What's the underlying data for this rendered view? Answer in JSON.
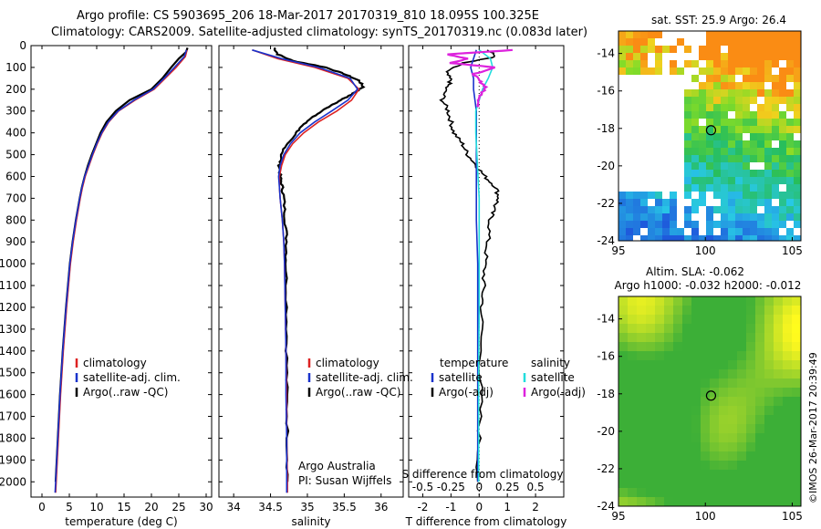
{
  "header": {
    "line1": "Argo profile: CS 5903695_206 18-Mar-2017 20170319_810 18.095S 100.325E",
    "line2": "Climatology: CARS2009. Satellite-adjusted climatology: synTS_20170319.nc (0.083d later)"
  },
  "colors": {
    "clim": "#dd2222",
    "sat": "#1a33cc",
    "argo": "#000000",
    "sal_sat": "#22dddd",
    "sal_argo": "#dd22dd"
  },
  "depth_axis": {
    "ticks": [
      "0",
      "100",
      "200",
      "300",
      "400",
      "500",
      "600",
      "700",
      "800",
      "900",
      "1000",
      "1100",
      "1200",
      "1300",
      "1400",
      "1500",
      "1600",
      "1700",
      "1800",
      "1900",
      "2000"
    ]
  },
  "chart_data": [
    {
      "type": "line",
      "title": "temperature profile",
      "xlabel": "temperature (deg C)",
      "xlim": [
        -2,
        31
      ],
      "ylim": [
        2070,
        0
      ],
      "xticks": [
        "0",
        "5",
        "10",
        "15",
        "20",
        "25",
        "30"
      ],
      "legend": [
        "climatology",
        "satellite-adj. clim.",
        "Argo(..raw -QC)"
      ],
      "series": [
        {
          "name": "climatology",
          "depth": [
            20,
            50,
            100,
            150,
            200,
            250,
            300,
            350,
            400,
            450,
            500,
            550,
            600,
            650,
            700,
            800,
            900,
            1000,
            1200,
            1400,
            1600,
            1800,
            2000,
            2050
          ],
          "values": [
            26.5,
            26.2,
            24.5,
            22.5,
            20.5,
            17.0,
            14.0,
            12.2,
            11.0,
            10.1,
            9.3,
            8.6,
            7.9,
            7.4,
            7.0,
            6.3,
            5.7,
            5.2,
            4.5,
            3.9,
            3.4,
            3.0,
            2.6,
            2.5
          ]
        },
        {
          "name": "satellite-adj. clim.",
          "depth": [
            20,
            50,
            100,
            150,
            200,
            250,
            300,
            350,
            400,
            450,
            500,
            550,
            600,
            650,
            700,
            800,
            900,
            1000,
            1200,
            1400,
            1600,
            1800,
            2000,
            2050
          ],
          "values": [
            26.4,
            26.0,
            24.2,
            22.3,
            20.3,
            16.8,
            13.9,
            12.1,
            10.9,
            10.0,
            9.2,
            8.5,
            7.8,
            7.3,
            6.9,
            6.2,
            5.6,
            5.1,
            4.4,
            3.8,
            3.3,
            2.9,
            2.5,
            2.4
          ]
        },
        {
          "name": "Argo(..raw -QC)",
          "depth": [
            10,
            30,
            60,
            100,
            150,
            200,
            250,
            300,
            350,
            400,
            450,
            500,
            550,
            600,
            650,
            700,
            800,
            900,
            1000,
            1200,
            1400,
            1600,
            1800,
            2000
          ],
          "values": [
            26.6,
            26.3,
            25.0,
            23.6,
            22.0,
            20.0,
            16.0,
            13.5,
            11.8,
            10.7,
            9.9,
            9.1,
            8.4,
            7.8,
            7.3,
            6.9,
            6.2,
            5.6,
            5.1,
            4.4,
            3.8,
            3.3,
            2.9,
            2.5
          ]
        }
      ]
    },
    {
      "type": "line",
      "title": "salinity profile",
      "xlabel": "salinity",
      "xlim": [
        33.8,
        36.3
      ],
      "ylim": [
        2070,
        0
      ],
      "xticks": [
        "34",
        "34.5",
        "35",
        "35.5",
        "36"
      ],
      "legend": [
        "climatology",
        "satellite-adj. clim.",
        "Argo(..raw -QC)"
      ],
      "annotation": [
        "Argo Australia",
        "PI: Susan Wijffels"
      ],
      "series": [
        {
          "name": "climatology",
          "depth": [
            20,
            60,
            100,
            150,
            200,
            250,
            300,
            350,
            400,
            450,
            500,
            550,
            600,
            650,
            700,
            800,
            900,
            1000,
            1200,
            1400,
            1600,
            1800,
            2000,
            2050
          ],
          "values": [
            34.25,
            34.6,
            35.1,
            35.55,
            35.7,
            35.6,
            35.4,
            35.15,
            34.95,
            34.8,
            34.7,
            34.65,
            34.62,
            34.62,
            34.63,
            34.66,
            34.68,
            34.69,
            34.7,
            34.71,
            34.72,
            34.72,
            34.73,
            34.73
          ]
        },
        {
          "name": "satellite-adj. clim.",
          "depth": [
            20,
            60,
            100,
            150,
            200,
            250,
            300,
            350,
            400,
            450,
            500,
            550,
            600,
            650,
            700,
            800,
            900,
            1000,
            1200,
            1400,
            1600,
            1800,
            2000,
            2050
          ],
          "values": [
            34.25,
            34.65,
            35.15,
            35.58,
            35.68,
            35.55,
            35.33,
            35.1,
            34.9,
            34.77,
            34.68,
            34.63,
            34.61,
            34.62,
            34.63,
            34.66,
            34.68,
            34.69,
            34.7,
            34.71,
            34.71,
            34.72,
            34.72,
            34.72
          ]
        },
        {
          "name": "Argo(..raw -QC)",
          "depth": [
            10,
            40,
            70,
            100,
            130,
            160,
            190,
            220,
            250,
            280,
            320,
            360,
            400,
            450,
            500,
            550,
            600,
            650,
            700,
            800,
            900,
            1000,
            1200,
            1400,
            1600,
            1800,
            2000
          ],
          "values": [
            34.55,
            34.6,
            34.8,
            35.25,
            35.5,
            35.7,
            35.76,
            35.62,
            35.45,
            35.3,
            35.1,
            34.95,
            34.85,
            34.72,
            34.65,
            34.62,
            34.63,
            34.66,
            34.68,
            34.7,
            34.72,
            34.71,
            34.72,
            34.72,
            34.72,
            34.73,
            34.73
          ]
        }
      ]
    },
    {
      "type": "line",
      "title": "difference from climatology",
      "xlabel": "T difference from climatology",
      "x2label": "S difference from climatology",
      "xlim": [
        -2.5,
        3
      ],
      "ylim": [
        2070,
        0
      ],
      "xticks": [
        "-2",
        "-1",
        "0",
        "1",
        "2"
      ],
      "x2ticks": [
        "-0.5",
        "-0.25",
        "0",
        "0.25",
        "0.5"
      ],
      "legend_left_title": "temperature",
      "legend_right_title": "salinity",
      "legend_left": [
        "satellite",
        "Argo(-adj)"
      ],
      "legend_right": [
        "satellite",
        "Argo(-adj)"
      ],
      "series": [
        {
          "name": "temperature satellite",
          "depth": [
            20,
            60,
            100,
            150,
            200,
            300,
            400,
            500,
            600,
            700,
            800,
            1000,
            1200,
            1500,
            2000
          ],
          "values": [
            -0.1,
            -0.2,
            -0.3,
            -0.2,
            -0.2,
            -0.1,
            -0.1,
            -0.1,
            -0.1,
            -0.1,
            -0.1,
            -0.05,
            -0.05,
            -0.05,
            -0.05
          ]
        },
        {
          "name": "temperature Argo(-adj)",
          "depth": [
            20,
            50,
            80,
            120,
            160,
            200,
            250,
            300,
            350,
            400,
            450,
            500,
            550,
            600,
            650,
            700,
            750,
            800,
            900,
            1000,
            1100,
            1200,
            1400,
            1600,
            1800,
            2000
          ],
          "values": [
            0.3,
            0.6,
            -0.6,
            -1.2,
            -1.0,
            -1.2,
            -1.3,
            -1.1,
            -1.0,
            -0.9,
            -0.6,
            -0.4,
            -0.1,
            0.2,
            0.6,
            0.7,
            0.5,
            0.4,
            0.3,
            0.2,
            0.15,
            0.1,
            0.05,
            0.05,
            0.0,
            -0.05
          ]
        },
        {
          "name": "salinity satellite",
          "depth": [
            20,
            60,
            100,
            150,
            200,
            300,
            400,
            500,
            600,
            700,
            800,
            1000,
            1200,
            1500,
            2000
          ],
          "values": [
            0.0,
            0.1,
            0.12,
            0.08,
            0.03,
            -0.03,
            -0.03,
            -0.02,
            -0.01,
            0.0,
            0.0,
            0.0,
            0.0,
            -0.005,
            -0.005
          ]
        },
        {
          "name": "salinity Argo(-adj)",
          "depth": [
            20,
            40,
            60,
            80,
            100,
            130,
            160,
            190,
            220,
            250,
            280
          ],
          "values": [
            0.3,
            -0.28,
            -0.1,
            -0.25,
            0.15,
            -0.05,
            0.0,
            0.06,
            0.02,
            0.0,
            -0.02
          ]
        }
      ]
    },
    {
      "type": "heatmap",
      "title": "sat. SST: 25.9  Argo: 26.4",
      "xlim": [
        95,
        105.5
      ],
      "ylim": [
        -24,
        -12.8
      ],
      "xticks": [
        "95",
        "100",
        "105"
      ],
      "yticks": [
        "-14",
        "-16",
        "-18",
        "-20",
        "-22",
        "-24"
      ],
      "marker": {
        "lon": 100.325,
        "lat": -18.095
      }
    },
    {
      "type": "heatmap",
      "title": "Altim. SLA: -0.062",
      "subtitle": "Argo h1000: -0.032  h2000: -0.012",
      "xlim": [
        95,
        105.5
      ],
      "ylim": [
        -24,
        -12.8
      ],
      "xticks": [
        "95",
        "100",
        "105"
      ],
      "yticks": [
        "-14",
        "-16",
        "-18",
        "-20",
        "-22",
        "-24"
      ],
      "marker": {
        "lon": 100.325,
        "lat": -18.095
      }
    }
  ],
  "credit": "©IMOS 26-Mar-2017 20:39:49"
}
